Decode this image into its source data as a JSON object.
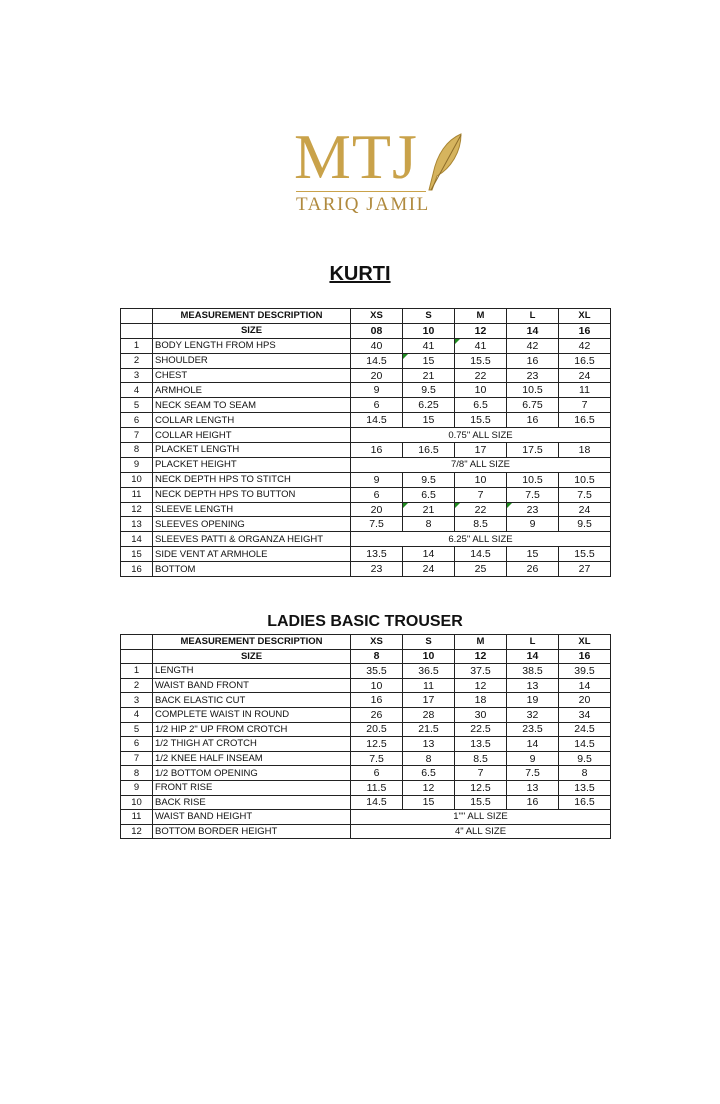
{
  "logo": {
    "mark": "MTJ",
    "subtitle": "TARIQ JAMIL",
    "color": "#c9a24a"
  },
  "kurti": {
    "title": "KURTI",
    "header": [
      "",
      "MEASUREMENT DESCRIPTION",
      "XS",
      "S",
      "M",
      "L",
      "XL"
    ],
    "size_row": [
      "",
      "SIZE",
      "08",
      "10",
      "12",
      "14",
      "16"
    ],
    "rows": [
      {
        "no": "1",
        "desc": "BODY LENGTH FROM HPS",
        "values": [
          "40",
          "41",
          "41",
          "42",
          "42"
        ],
        "flags": [
          2
        ]
      },
      {
        "no": "2",
        "desc": "SHOULDER",
        "values": [
          "14.5",
          "15",
          "15.5",
          "16",
          "16.5"
        ],
        "flags": [
          1
        ]
      },
      {
        "no": "3",
        "desc": "CHEST",
        "values": [
          "20",
          "21",
          "22",
          "23",
          "24"
        ]
      },
      {
        "no": "4",
        "desc": "ARMHOLE",
        "values": [
          "9",
          "9.5",
          "10",
          "10.5",
          "11"
        ]
      },
      {
        "no": "5",
        "desc": "NECK SEAM TO SEAM",
        "values": [
          "6",
          "6.25",
          "6.5",
          "6.75",
          "7"
        ]
      },
      {
        "no": "6",
        "desc": "COLLAR LENGTH",
        "values": [
          "14.5",
          "15",
          "15.5",
          "16",
          "16.5"
        ]
      },
      {
        "no": "7",
        "desc": "COLLAR HEIGHT",
        "all_size": "0.75\" ALL SIZE"
      },
      {
        "no": "8",
        "desc": "PLACKET LENGTH",
        "values": [
          "16",
          "16.5",
          "17",
          "17.5",
          "18"
        ]
      },
      {
        "no": "9",
        "desc": "PLACKET HEIGHT",
        "all_size": "7/8\" ALL SIZE"
      },
      {
        "no": "10",
        "desc": "NECK DEPTH HPS TO STITCH",
        "values": [
          "9",
          "9.5",
          "10",
          "10.5",
          "10.5"
        ]
      },
      {
        "no": "11",
        "desc": "NECK DEPTH HPS TO BUTTON",
        "values": [
          "6",
          "6.5",
          "7",
          "7.5",
          "7.5"
        ]
      },
      {
        "no": "12",
        "desc": "SLEEVE LENGTH",
        "values": [
          "20",
          "21",
          "22",
          "23",
          "24"
        ],
        "flags": [
          1,
          2,
          3
        ]
      },
      {
        "no": "13",
        "desc": "SLEEVES OPENING",
        "values": [
          "7.5",
          "8",
          "8.5",
          "9",
          "9.5"
        ]
      },
      {
        "no": "14",
        "desc": "SLEEVES PATTI & ORGANZA HEIGHT",
        "all_size": "6.25\" ALL SIZE"
      },
      {
        "no": "15",
        "desc": "SIDE VENT AT ARMHOLE",
        "values": [
          "13.5",
          "14",
          "14.5",
          "15",
          "15.5"
        ]
      },
      {
        "no": "16",
        "desc": "BOTTOM",
        "values": [
          "23",
          "24",
          "25",
          "26",
          "27"
        ]
      }
    ]
  },
  "trouser": {
    "title": "LADIES BASIC  TROUSER",
    "header": [
      "",
      "MEASUREMENT DESCRIPTION",
      "XS",
      "S",
      "M",
      "L",
      "XL"
    ],
    "size_row": [
      "",
      "SIZE",
      "8",
      "10",
      "12",
      "14",
      "16"
    ],
    "rows": [
      {
        "no": "1",
        "desc": "LENGTH",
        "values": [
          "35.5",
          "36.5",
          "37.5",
          "38.5",
          "39.5"
        ]
      },
      {
        "no": "2",
        "desc": "WAIST BAND FRONT",
        "values": [
          "10",
          "11",
          "12",
          "13",
          "14"
        ]
      },
      {
        "no": "3",
        "desc": "BACK ELASTIC CUT",
        "values": [
          "16",
          "17",
          "18",
          "19",
          "20"
        ]
      },
      {
        "no": "4",
        "desc": "COMPLETE WAIST IN ROUND",
        "values": [
          "26",
          "28",
          "30",
          "32",
          "34"
        ]
      },
      {
        "no": "5",
        "desc": "1/2 HIP 2\" UP FROM CROTCH",
        "values": [
          "20.5",
          "21.5",
          "22.5",
          "23.5",
          "24.5"
        ]
      },
      {
        "no": "6",
        "desc": "1/2 THIGH AT CROTCH",
        "values": [
          "12.5",
          "13",
          "13.5",
          "14",
          "14.5"
        ]
      },
      {
        "no": "7",
        "desc": "1/2 KNEE HALF INSEAM",
        "values": [
          "7.5",
          "8",
          "8.5",
          "9",
          "9.5"
        ]
      },
      {
        "no": "8",
        "desc": "1/2 BOTTOM OPENING",
        "values": [
          "6",
          "6.5",
          "7",
          "7.5",
          "8"
        ]
      },
      {
        "no": "9",
        "desc": "FRONT RISE",
        "values": [
          "11.5",
          "12",
          "12.5",
          "13",
          "13.5"
        ]
      },
      {
        "no": "10",
        "desc": "BACK RISE",
        "values": [
          "14.5",
          "15",
          "15.5",
          "16",
          "16.5"
        ]
      },
      {
        "no": "11",
        "desc": "WAIST BAND HEIGHT",
        "all_size": "1\"\" ALL SIZE"
      },
      {
        "no": "12",
        "desc": "BOTTOM BORDER HEIGHT",
        "all_size": "4\" ALL SIZE"
      }
    ]
  }
}
